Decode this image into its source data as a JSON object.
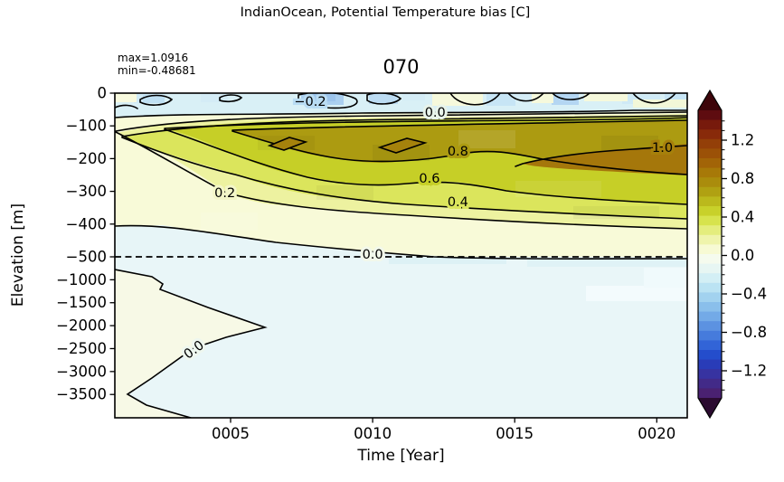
{
  "figure": {
    "suptitle": "IndianOcean, Potential Temperature bias [C]",
    "title": "070",
    "annotation_max": "max=1.0916",
    "annotation_min": "min=-0.48681"
  },
  "axes": {
    "xlabel": "Time [Year]",
    "ylabel": "Elevation [m]",
    "x_ticks": [
      {
        "label": "0005",
        "year": 5
      },
      {
        "label": "0010",
        "year": 10
      },
      {
        "label": "0015",
        "year": 15
      },
      {
        "label": "0020",
        "year": 20
      }
    ],
    "y_ticks": [
      {
        "label": "0",
        "elev": 0
      },
      {
        "label": "−100",
        "elev": -100
      },
      {
        "label": "−200",
        "elev": -200
      },
      {
        "label": "−300",
        "elev": -300
      },
      {
        "label": "−400",
        "elev": -400
      },
      {
        "label": "−500",
        "elev": -500
      },
      {
        "label": "−1000",
        "elev": -1000
      },
      {
        "label": "−1500",
        "elev": -1500
      },
      {
        "label": "−2000",
        "elev": -2000
      },
      {
        "label": "−2500",
        "elev": -2500
      },
      {
        "label": "−3000",
        "elev": -3000
      },
      {
        "label": "−3500",
        "elev": -3500
      }
    ]
  },
  "colorbar": {
    "ticks": [
      {
        "label": "1.2",
        "value": 1.2
      },
      {
        "label": "0.8",
        "value": 0.8
      },
      {
        "label": "0.4",
        "value": 0.4
      },
      {
        "label": "0.0",
        "value": 0.0
      },
      {
        "label": "−0.4",
        "value": -0.4
      },
      {
        "label": "−0.8",
        "value": -0.8
      },
      {
        "label": "−1.2",
        "value": -1.2
      }
    ],
    "level_min": -1.5,
    "level_max": 1.5,
    "level_step": 0.1,
    "extend": "both",
    "over_color": "#3d050a",
    "under_color": "#2b0b30",
    "colors_top_to_bottom": [
      "#5e0c10",
      "#771a0c",
      "#882a0a",
      "#933f08",
      "#9b5107",
      "#a26407",
      "#a77908",
      "#aa8c0c",
      "#b0a112",
      "#bbb91c",
      "#c8d12a",
      "#d7e34d",
      "#e4ed7d",
      "#eff4ac",
      "#f7fad4",
      "#f5fbee",
      "#e7f6f3",
      "#d3eff5",
      "#bbe3f3",
      "#a2d2ef",
      "#8abfeb",
      "#73aae7",
      "#5c92e1",
      "#467bdc",
      "#3264d7",
      "#244dcc",
      "#293cb8",
      "#3733a1",
      "#422a88",
      "#4a2171"
    ]
  },
  "chart_data": {
    "type": "heatmap",
    "subtype": "filled-contour-section",
    "title": "070",
    "suptitle": "IndianOcean, Potential Temperature bias [C]",
    "xlabel": "Time [Year]",
    "ylabel": "Elevation [m]",
    "x_range_years": [
      1,
      21
    ],
    "y_range_m": [
      0,
      -4000
    ],
    "y_axis_split_at_m": -500,
    "dashed_line_elevation_m": -500,
    "stats": {
      "max": 1.0916,
      "min": -0.48681
    },
    "contour_level_step": 0.1,
    "contour_labels": [
      {
        "value": "−0.2",
        "year": 7.8,
        "elevation": -25,
        "halo": "#b9dcf3",
        "rot": 0
      },
      {
        "value": "0.0",
        "year": 12.2,
        "elevation": -58,
        "halo": "#e8f4ea",
        "rot": 0
      },
      {
        "value": "0.8",
        "year": 13.0,
        "elevation": -177,
        "halo": "#ac9b11",
        "rot": 0
      },
      {
        "value": "1.0",
        "year": 20.2,
        "elevation": -166,
        "halo": "#a6800b",
        "rot": 0
      },
      {
        "value": "0.6",
        "year": 12.0,
        "elevation": -260,
        "halo": "#c6cf27",
        "rot": 0
      },
      {
        "value": "0.4",
        "year": 13.0,
        "elevation": -331,
        "halo": "#dbe55c",
        "rot": 0
      },
      {
        "value": "0.2",
        "year": 4.8,
        "elevation": -304,
        "halo": "#f3f6c8",
        "rot": 0
      },
      {
        "value": "0.0",
        "year": 10.0,
        "elevation": -492,
        "halo": "#f2f8ea",
        "rot": 0
      },
      {
        "value": "0.0",
        "year": 3.7,
        "elevation": -2520,
        "halo": "#eef7ef",
        "rot": -36
      }
    ],
    "features": [
      "Thin near-surface layer (0 to ~-50 m) slightly negative (-0.2 to -0.4) shown as cyan/blue patches",
      "Strong warm bias core 0.8-1.1 C between ~-100 and -300 m, intensifying toward later years (max 1.0916)",
      "Bias bands (0.2-0.8) deepen with time between -300 and -500 m",
      "Below -500 m bias is near zero to slightly negative (light cyan), with a slightly positive wedge near years 1-6 down to ~-2500 m"
    ]
  }
}
